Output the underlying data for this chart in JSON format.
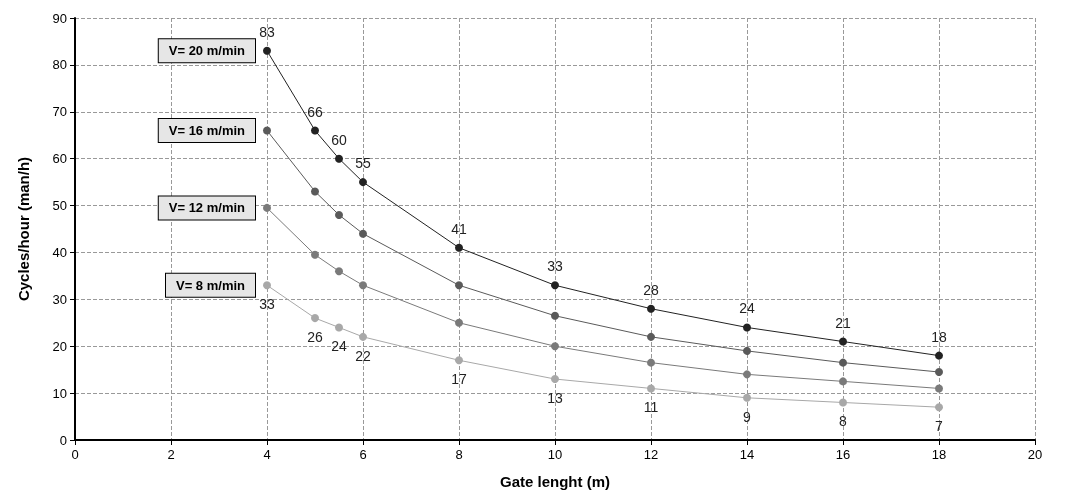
{
  "chart_data": {
    "type": "line",
    "xlabel": "Gate lenght (m)",
    "ylabel": "Cycles/hour (man/h)",
    "xlim": [
      0,
      20
    ],
    "xticks": [
      0,
      2,
      4,
      6,
      8,
      10,
      12,
      14,
      16,
      18,
      20
    ],
    "ylim": [
      0,
      90
    ],
    "yticks": [
      0,
      10,
      20,
      30,
      40,
      50,
      60,
      70,
      80,
      90
    ],
    "grid": true,
    "marker": "circle",
    "line_style": "solid",
    "legend": false,
    "x": [
      4,
      5,
      5.5,
      6,
      8,
      10,
      12,
      14,
      16,
      18
    ],
    "series": [
      {
        "name": "V= 20 m/min",
        "color": "#222222",
        "values": [
          83,
          66,
          60,
          55,
          41,
          33,
          28,
          24,
          21,
          18
        ],
        "data_labels": true
      },
      {
        "name": "V= 16 m/min",
        "color": "#5a5a5a",
        "values": [
          66,
          53,
          48,
          44,
          33,
          26.5,
          22,
          19,
          16.5,
          14.5
        ]
      },
      {
        "name": "V= 12 m/min",
        "color": "#7a7a7a",
        "values": [
          49.5,
          39.5,
          36,
          33,
          25,
          20,
          16.5,
          14,
          12.5,
          11
        ]
      },
      {
        "name": "V= 8 m/min",
        "color": "#a8a8a8",
        "values": [
          33,
          26,
          24,
          22,
          17,
          13,
          11,
          9,
          8,
          7
        ],
        "data_labels": true
      }
    ]
  }
}
